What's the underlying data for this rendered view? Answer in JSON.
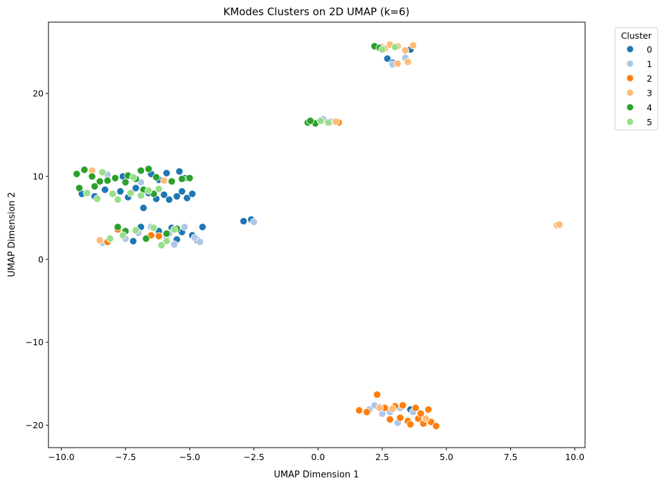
{
  "chart_data": {
    "type": "scatter",
    "title": "KModes Clusters on 2D UMAP (k=6)",
    "xlabel": "UMAP Dimension 1",
    "ylabel": "UMAP Dimension 2",
    "xlim": [
      -10.5,
      10.4
    ],
    "ylim": [
      -22.7,
      28.6
    ],
    "xticks": [
      -10.0,
      -7.5,
      -5.0,
      -2.5,
      0.0,
      2.5,
      5.0,
      7.5,
      10.0
    ],
    "xtick_labels": [
      "−10.0",
      "−7.5",
      "−5.0",
      "−2.5",
      "0.0",
      "2.5",
      "5.0",
      "7.5",
      "10.0"
    ],
    "yticks": [
      -20,
      -10,
      0,
      10,
      20
    ],
    "ytick_labels": [
      "−20",
      "−10",
      "0",
      "10",
      "20"
    ],
    "grid": false,
    "legend": {
      "title": "Cluster",
      "placement": "upper-right-outside",
      "entries": [
        "0",
        "1",
        "2",
        "3",
        "4",
        "5"
      ]
    },
    "colors": [
      "#1f77b4",
      "#aec7e8",
      "#ff7f0e",
      "#ffbb78",
      "#2ca02c",
      "#98df8a"
    ],
    "series": [
      {
        "name": "0",
        "points": [
          [
            -9.2,
            7.9
          ],
          [
            -8.7,
            7.6
          ],
          [
            -8.3,
            8.4
          ],
          [
            -8.0,
            7.9
          ],
          [
            -7.7,
            8.2
          ],
          [
            -7.4,
            7.5
          ],
          [
            -7.1,
            8.6
          ],
          [
            -6.6,
            8.0
          ],
          [
            -6.3,
            7.3
          ],
          [
            -6.0,
            7.8
          ],
          [
            -5.8,
            7.2
          ],
          [
            -5.5,
            7.6
          ],
          [
            -5.3,
            8.2
          ],
          [
            -5.1,
            7.4
          ],
          [
            -4.9,
            7.9
          ],
          [
            -6.2,
            9.6
          ],
          [
            -5.9,
            10.4
          ],
          [
            -5.4,
            10.6
          ],
          [
            -5.2,
            9.8
          ],
          [
            -6.5,
            10.3
          ],
          [
            -7.6,
            10.0
          ],
          [
            -6.8,
            6.2
          ],
          [
            -6.9,
            3.9
          ],
          [
            -6.2,
            3.4
          ],
          [
            -5.7,
            3.8
          ],
          [
            -5.3,
            3.3
          ],
          [
            -4.9,
            2.9
          ],
          [
            -4.7,
            2.3
          ],
          [
            -4.5,
            3.9
          ],
          [
            -5.5,
            2.4
          ],
          [
            -7.2,
            2.2
          ],
          [
            -2.9,
            4.6
          ],
          [
            -2.6,
            4.8
          ],
          [
            2.7,
            24.2
          ],
          [
            2.9,
            23.7
          ],
          [
            3.6,
            25.3
          ],
          [
            2.4,
            -17.8
          ],
          [
            3.6,
            -18.1
          ]
        ]
      },
      {
        "name": "1",
        "points": [
          [
            -8.2,
            10.2
          ],
          [
            -6.9,
            9.3
          ],
          [
            -7.0,
            3.2
          ],
          [
            -6.5,
            3.9
          ],
          [
            -5.8,
            3.1
          ],
          [
            -5.2,
            3.9
          ],
          [
            -4.8,
            2.6
          ],
          [
            -4.6,
            2.1
          ],
          [
            -5.6,
            1.8
          ],
          [
            -7.5,
            2.5
          ],
          [
            -8.4,
            2.0
          ],
          [
            -5.9,
            2.6
          ],
          [
            -2.5,
            4.5
          ],
          [
            0.2,
            16.9
          ],
          [
            0.5,
            16.6
          ],
          [
            2.9,
            23.5
          ],
          [
            3.4,
            24.3
          ],
          [
            2.0,
            -18.1
          ],
          [
            2.5,
            -18.6
          ],
          [
            2.8,
            -18.4
          ],
          [
            3.2,
            -17.9
          ],
          [
            3.7,
            -18.4
          ],
          [
            3.1,
            -19.7
          ],
          [
            2.2,
            -17.6
          ]
        ]
      },
      {
        "name": "2",
        "points": [
          [
            -8.2,
            2.1
          ],
          [
            -7.8,
            3.6
          ],
          [
            -6.5,
            2.9
          ],
          [
            -6.2,
            2.8
          ],
          [
            0.8,
            16.5
          ],
          [
            2.3,
            -16.3
          ],
          [
            1.6,
            -18.2
          ],
          [
            1.9,
            -18.4
          ],
          [
            2.6,
            -17.9
          ],
          [
            3.0,
            -17.7
          ],
          [
            3.3,
            -17.6
          ],
          [
            3.8,
            -17.9
          ],
          [
            4.3,
            -18.1
          ],
          [
            2.8,
            -19.3
          ],
          [
            3.2,
            -19.1
          ],
          [
            3.5,
            -19.5
          ],
          [
            3.9,
            -19.2
          ],
          [
            4.1,
            -19.8
          ],
          [
            4.4,
            -19.6
          ],
          [
            4.6,
            -20.1
          ],
          [
            3.6,
            -19.9
          ],
          [
            4.0,
            -18.6
          ]
        ]
      },
      {
        "name": "3",
        "points": [
          [
            -8.8,
            10.7
          ],
          [
            -6.0,
            9.5
          ],
          [
            -8.5,
            2.3
          ],
          [
            0.7,
            16.6
          ],
          [
            2.5,
            25.6
          ],
          [
            2.8,
            25.9
          ],
          [
            3.1,
            25.7
          ],
          [
            3.4,
            25.2
          ],
          [
            3.7,
            25.8
          ],
          [
            2.6,
            25.4
          ],
          [
            3.1,
            23.6
          ],
          [
            3.5,
            23.8
          ],
          [
            9.3,
            4.1
          ],
          [
            9.4,
            4.2
          ],
          [
            2.9,
            -18.0
          ],
          [
            4.2,
            -19.2
          ],
          [
            2.4,
            -17.9
          ]
        ]
      },
      {
        "name": "4",
        "points": [
          [
            -9.4,
            10.3
          ],
          [
            -9.1,
            10.8
          ],
          [
            -8.8,
            10.0
          ],
          [
            -8.5,
            9.4
          ],
          [
            -8.2,
            9.5
          ],
          [
            -7.9,
            9.8
          ],
          [
            -7.4,
            10.1
          ],
          [
            -7.1,
            9.7
          ],
          [
            -6.9,
            10.7
          ],
          [
            -6.6,
            10.9
          ],
          [
            -6.3,
            9.9
          ],
          [
            -5.7,
            9.4
          ],
          [
            -5.3,
            9.7
          ],
          [
            -5.0,
            9.8
          ],
          [
            -9.3,
            8.6
          ],
          [
            -8.7,
            8.8
          ],
          [
            -7.5,
            9.3
          ],
          [
            -6.8,
            8.4
          ],
          [
            -6.4,
            7.9
          ],
          [
            -7.8,
            3.9
          ],
          [
            -7.5,
            3.4
          ],
          [
            -6.7,
            2.5
          ],
          [
            -5.9,
            3.1
          ],
          [
            -5.5,
            3.7
          ],
          [
            -0.4,
            16.5
          ],
          [
            -0.1,
            16.4
          ],
          [
            -0.3,
            16.7
          ],
          [
            2.2,
            25.7
          ],
          [
            2.4,
            25.5
          ]
        ]
      },
      {
        "name": "5",
        "points": [
          [
            -9.0,
            8.0
          ],
          [
            -8.6,
            7.3
          ],
          [
            -8.0,
            7.9
          ],
          [
            -7.8,
            7.2
          ],
          [
            -7.3,
            8.0
          ],
          [
            -6.9,
            7.7
          ],
          [
            -6.6,
            8.3
          ],
          [
            -6.2,
            8.5
          ],
          [
            -7.2,
            9.9
          ],
          [
            -8.4,
            10.5
          ],
          [
            -8.1,
            2.5
          ],
          [
            -7.6,
            2.9
          ],
          [
            -7.1,
            3.5
          ],
          [
            -6.4,
            3.8
          ],
          [
            -5.9,
            2.2
          ],
          [
            -6.1,
            1.7
          ],
          [
            -5.6,
            3.6
          ],
          [
            0.1,
            16.7
          ],
          [
            0.4,
            16.5
          ],
          [
            2.5,
            25.3
          ],
          [
            3.0,
            25.6
          ]
        ]
      }
    ]
  }
}
